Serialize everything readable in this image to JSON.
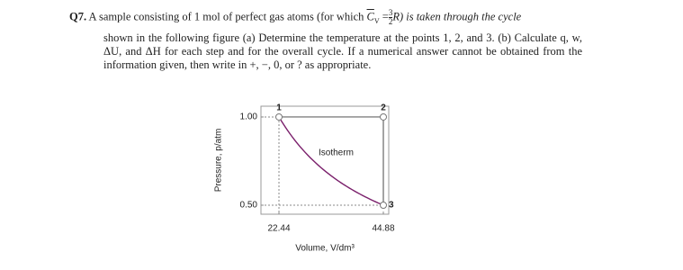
{
  "question": {
    "number": "Q7.",
    "line1_before": "A sample consisting of 1 mol of perfect gas atoms (for which ",
    "cv_symbol": "C",
    "cv_subscript": "V",
    "equals": "=",
    "frac_num": "3",
    "frac_den": "2",
    "line1_after": "R) is taken through the cycle",
    "body": "shown in the following figure (a) Determine the temperature at the points 1, 2, and 3. (b) Calculate q, w, ΔU, and ΔH for each step and for the overall cycle. If a numerical answer cannot be obtained from the information given, then write in +, −, 0, or ? as appropriate."
  },
  "figure": {
    "ylabel": "Pressure, p/atm",
    "xlabel": "Volume, V/dm³",
    "curve_label": "Isotherm",
    "xlim": [
      18.57,
      46.04
    ],
    "ylim": [
      0.449,
      1.061
    ],
    "xticks": [
      22.44,
      44.88
    ],
    "yticks": [
      {
        "value": 1,
        "label": "1.00"
      },
      {
        "value": 0.5,
        "label": "0.50"
      }
    ],
    "points": [
      {
        "label": "1",
        "x": 22.44,
        "y": 1
      },
      {
        "label": "2",
        "x": 44.88,
        "y": 1
      },
      {
        "label": "3",
        "x": 44.88,
        "y": 0.5
      }
    ]
  }
}
